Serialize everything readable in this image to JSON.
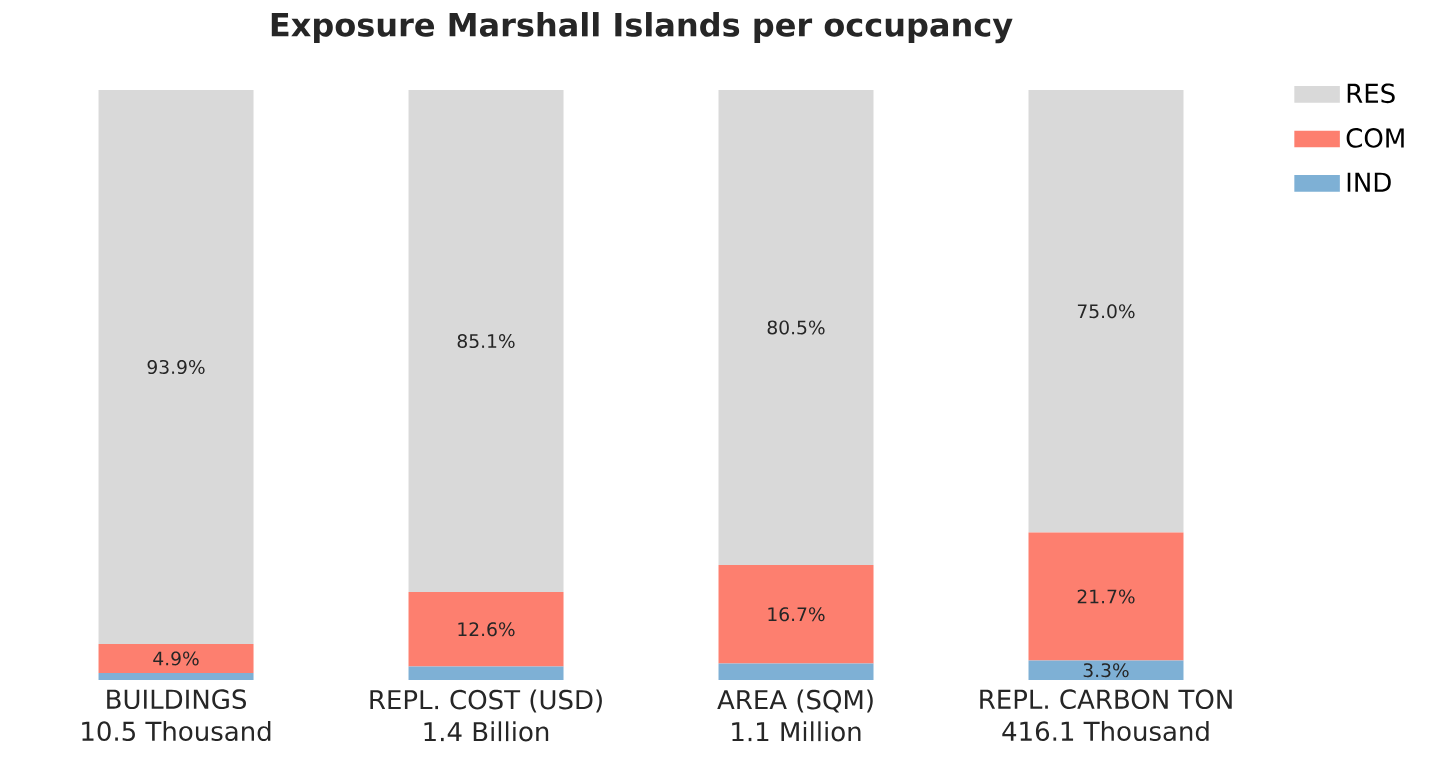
{
  "chart_data": {
    "type": "bar",
    "title": "Exposure Marshall Islands per occupancy",
    "stacked": true,
    "categories": [
      "BUILDINGS\n10.5 Thousand",
      "REPL. COST (USD)\n1.4 Billion",
      "AREA (SQM)\n1.1 Million",
      "REPL. CARBON TON\n416.1 Thousand"
    ],
    "series": [
      {
        "name": "IND",
        "color": "#7eb0d5",
        "values": [
          1.2,
          2.3,
          2.8,
          3.3
        ],
        "value_labels": [
          null,
          null,
          null,
          "3.3%"
        ]
      },
      {
        "name": "COM",
        "color": "#fd7f6f",
        "values": [
          4.9,
          12.6,
          16.7,
          21.7
        ],
        "value_labels": [
          "4.9%",
          "12.6%",
          "16.7%",
          "21.7%"
        ]
      },
      {
        "name": "RES",
        "color": "#d9d9d9",
        "values": [
          93.9,
          85.1,
          80.5,
          75.0
        ],
        "value_labels": [
          "93.9%",
          "85.1%",
          "80.5%",
          "75.0%"
        ]
      }
    ],
    "ylim": [
      0,
      100
    ],
    "legend": "top right"
  }
}
